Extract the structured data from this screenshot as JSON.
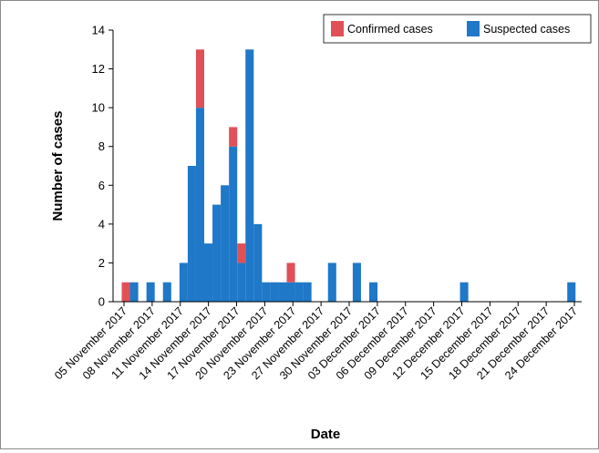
{
  "colors": {
    "confirmed": "#e05057",
    "suspected": "#1f78c8"
  },
  "chart_data": {
    "type": "bar",
    "stacked": true,
    "xlabel": "Date",
    "ylabel": "Number of cases",
    "ylim": [
      0,
      14
    ],
    "yticks": [
      0,
      2,
      4,
      6,
      8,
      10,
      12,
      14
    ],
    "legend": {
      "position": "top-right",
      "entries": [
        "Confirmed cases",
        "Suspected cases"
      ]
    },
    "x_tick_labels": [
      "05 November 2017",
      "08 November 2017",
      "11 November 2017",
      "14 November 2017",
      "17 November 2017",
      "20 November 2017",
      "23 November 2017",
      "27 November 2017",
      "30 November 2017",
      "03 December 2017",
      "06 December 2017",
      "09 December 2017",
      "12 December 2017",
      "15 December 2017",
      "18 December 2017",
      "21 December 2017",
      "24 December 2017"
    ],
    "series": [
      {
        "name": "Confirmed cases",
        "values": [
          1,
          0,
          0,
          0,
          0,
          0,
          0,
          0,
          0,
          3,
          0,
          0,
          0,
          1,
          1,
          0,
          0,
          0,
          0,
          0,
          1,
          0,
          0,
          0,
          0,
          0,
          0,
          0,
          0,
          0,
          0,
          0,
          0,
          0,
          0,
          0,
          0,
          0,
          0,
          0,
          0,
          0,
          0,
          0,
          0,
          0,
          0,
          0,
          0,
          0,
          0,
          0,
          0,
          0,
          0,
          0
        ]
      },
      {
        "name": "Suspected cases",
        "values": [
          0,
          1,
          0,
          1,
          0,
          1,
          0,
          2,
          7,
          10,
          3,
          5,
          6,
          8,
          2,
          13,
          4,
          1,
          1,
          1,
          1,
          1,
          1,
          0,
          0,
          2,
          0,
          0,
          2,
          0,
          1,
          0,
          0,
          0,
          0,
          0,
          0,
          0,
          0,
          0,
          0,
          1,
          0,
          0,
          0,
          0,
          0,
          0,
          0,
          0,
          0,
          0,
          0,
          0,
          1,
          0
        ]
      }
    ]
  }
}
